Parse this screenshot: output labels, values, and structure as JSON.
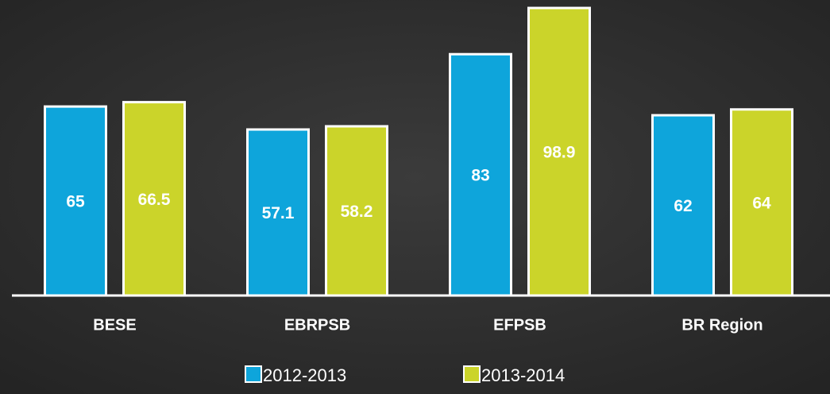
{
  "chart_data": {
    "type": "bar",
    "categories": [
      "BESE",
      "EBRPSB",
      "EFPSB",
      "BR Region"
    ],
    "series": [
      {
        "name": "2012-2013",
        "color": "#0ea5db",
        "values": [
          65,
          57.1,
          83,
          62
        ]
      },
      {
        "name": "2013-2014",
        "color": "#cbd42a",
        "values": [
          66.5,
          58.2,
          98.9,
          64
        ]
      }
    ],
    "ylim": [
      0,
      100
    ],
    "legend": "bottom"
  }
}
